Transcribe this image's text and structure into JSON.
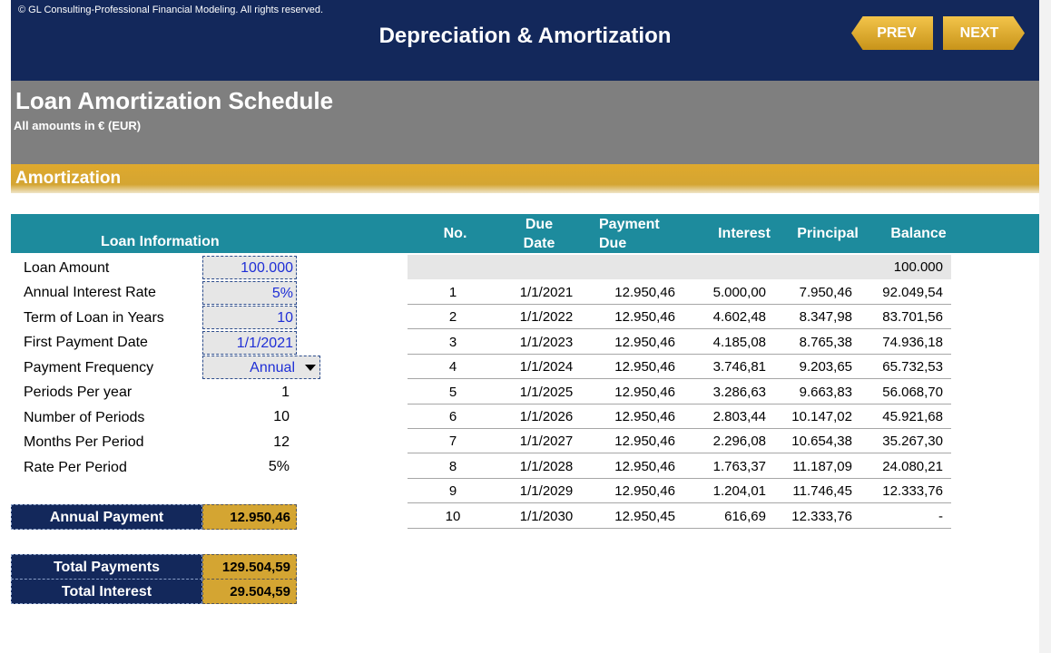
{
  "header": {
    "copyright": "© GL Consulting-Professional Financial Modeling. All rights reserved.",
    "title": "Depreciation & Amortization",
    "prev_label": "PREV",
    "next_label": "NEXT"
  },
  "sheet": {
    "title": "Loan Amortization Schedule",
    "subtitle": "All amounts in € (EUR)",
    "section": "Amortization"
  },
  "loan_info": {
    "title": "Loan Information",
    "rows": [
      {
        "label": "Loan Amount",
        "value": "100.000"
      },
      {
        "label": "Annual Interest Rate",
        "value": "5%"
      },
      {
        "label": "Term of Loan in Years",
        "value": "10"
      },
      {
        "label": "First Payment Date",
        "value": "1/1/2021"
      },
      {
        "label": "Payment Frequency",
        "value": "Annual"
      },
      {
        "label": "Periods Per year",
        "value": "1"
      },
      {
        "label": "Number of Periods",
        "value": "10"
      },
      {
        "label": "Months Per Period",
        "value": "12"
      },
      {
        "label": "Rate Per Period",
        "value": "5%"
      }
    ]
  },
  "summary": {
    "annual_payment_label": "Annual Payment",
    "annual_payment_value": "12.950,46",
    "total_payments_label": "Total Payments",
    "total_payments_value": "129.504,59",
    "total_interest_label": "Total Interest",
    "total_interest_value": "29.504,59"
  },
  "schedule": {
    "headers": {
      "no": "No.",
      "due_date_1": "Due",
      "due_date_2": "Date",
      "payment_1": "Payment",
      "payment_2": "Due",
      "interest": "Interest",
      "principal": "Principal",
      "balance": "Balance"
    },
    "opening_balance": "100.000",
    "rows": [
      {
        "no": "1",
        "date": "1/1/2021",
        "payment": "12.950,46",
        "interest": "5.000,00",
        "principal": "7.950,46",
        "balance": "92.049,54"
      },
      {
        "no": "2",
        "date": "1/1/2022",
        "payment": "12.950,46",
        "interest": "4.602,48",
        "principal": "8.347,98",
        "balance": "83.701,56"
      },
      {
        "no": "3",
        "date": "1/1/2023",
        "payment": "12.950,46",
        "interest": "4.185,08",
        "principal": "8.765,38",
        "balance": "74.936,18"
      },
      {
        "no": "4",
        "date": "1/1/2024",
        "payment": "12.950,46",
        "interest": "3.746,81",
        "principal": "9.203,65",
        "balance": "65.732,53"
      },
      {
        "no": "5",
        "date": "1/1/2025",
        "payment": "12.950,46",
        "interest": "3.286,63",
        "principal": "9.663,83",
        "balance": "56.068,70"
      },
      {
        "no": "6",
        "date": "1/1/2026",
        "payment": "12.950,46",
        "interest": "2.803,44",
        "principal": "10.147,02",
        "balance": "45.921,68"
      },
      {
        "no": "7",
        "date": "1/1/2027",
        "payment": "12.950,46",
        "interest": "2.296,08",
        "principal": "10.654,38",
        "balance": "35.267,30"
      },
      {
        "no": "8",
        "date": "1/1/2028",
        "payment": "12.950,46",
        "interest": "1.763,37",
        "principal": "11.187,09",
        "balance": "24.080,21"
      },
      {
        "no": "9",
        "date": "1/1/2029",
        "payment": "12.950,46",
        "interest": "1.204,01",
        "principal": "11.746,45",
        "balance": "12.333,76"
      },
      {
        "no": "10",
        "date": "1/1/2030",
        "payment": "12.950,45",
        "interest": "616,69",
        "principal": "12.333,76",
        "balance": "-"
      }
    ]
  },
  "colors": {
    "navy": "#13285b",
    "gold": "#d4a532",
    "teal": "#1d8b9d",
    "grey_band": "#7f7f7f",
    "input_text": "#1f2fd6"
  }
}
